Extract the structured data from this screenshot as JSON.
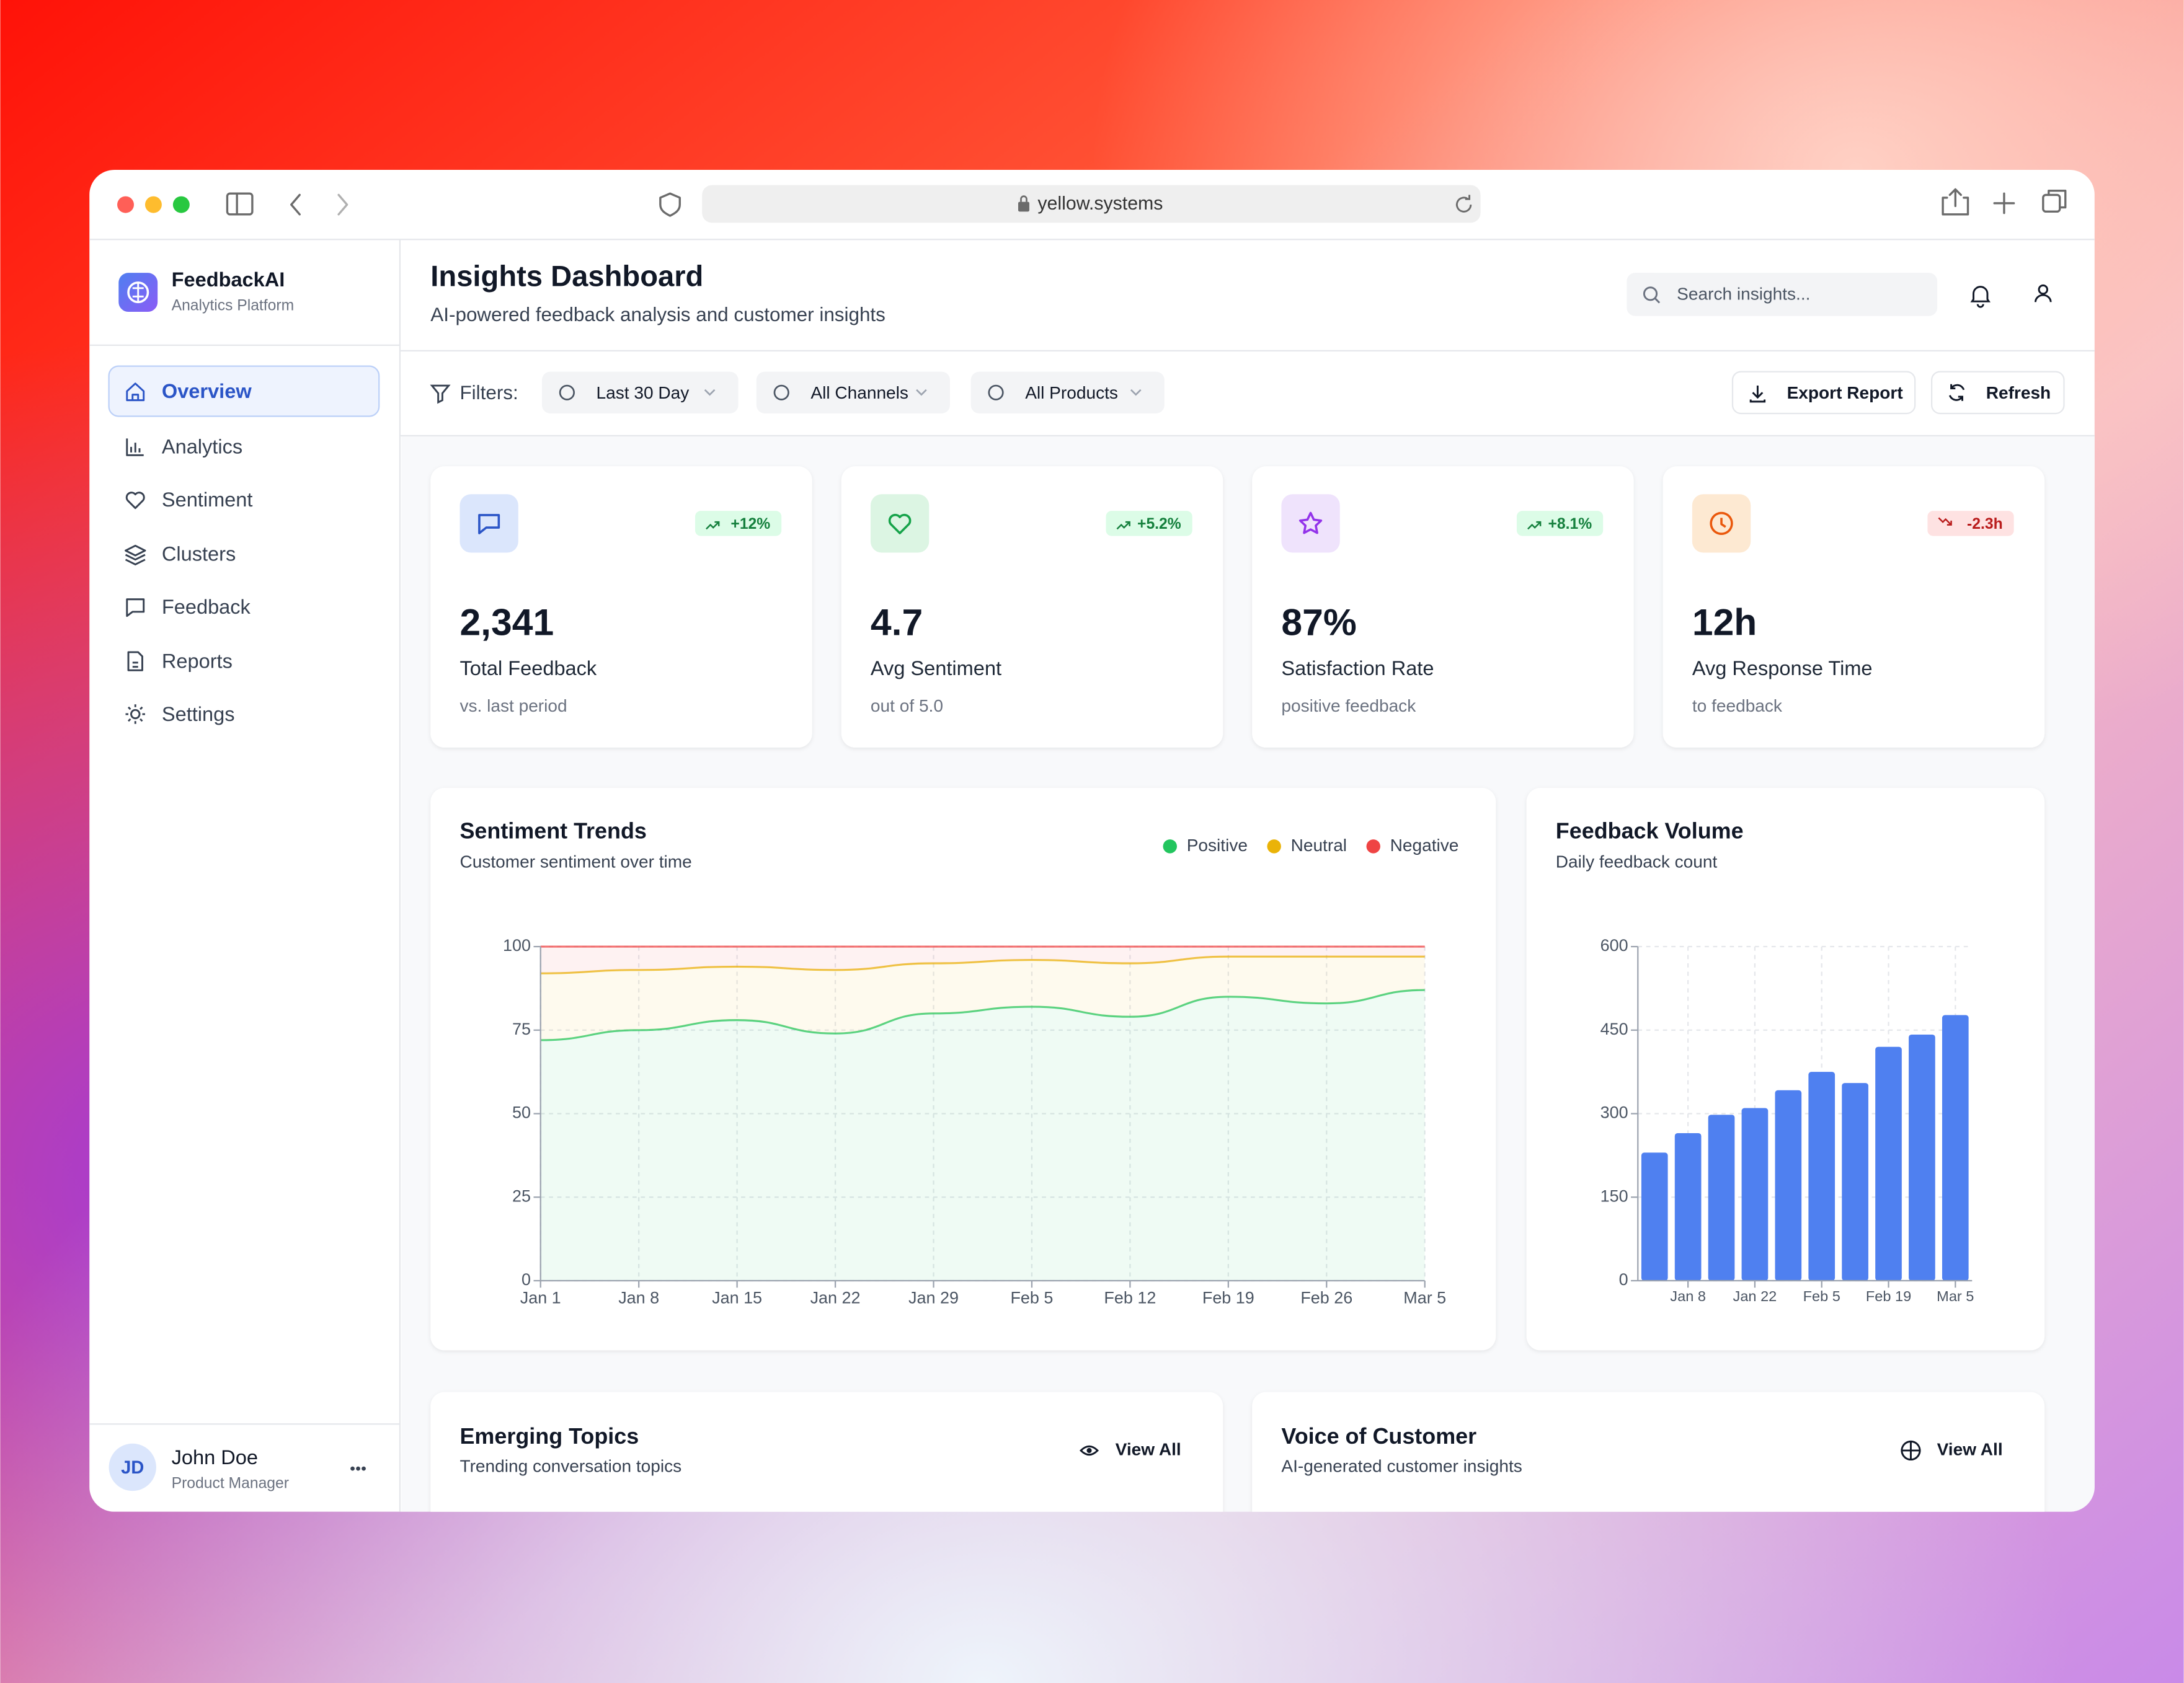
{
  "browser": {
    "url": "yellow.systems"
  },
  "sidebar": {
    "brand": "FeedbackAI",
    "tagline": "Analytics Platform",
    "nav": [
      "Overview",
      "Analytics",
      "Sentiment",
      "Clusters",
      "Feedback",
      "Reports",
      "Settings"
    ],
    "user": {
      "initials": "JD",
      "name": "John Doe",
      "role": "Product Manager"
    }
  },
  "header": {
    "title": "Insights Dashboard",
    "subtitle": "AI-powered feedback analysis and customer insights",
    "search_placeholder": "Search insights..."
  },
  "filters": {
    "label": "Filters:",
    "options": [
      "Last 30 Day",
      "All Channels",
      "All Products"
    ],
    "actions": [
      "Export Report",
      "Refresh"
    ]
  },
  "stats": [
    {
      "value": "2,341",
      "label": "Total Feedback",
      "note": "vs. last period",
      "change": "+12%"
    },
    {
      "value": "4.7",
      "label": "Avg Sentiment",
      "note": "out of 5.0",
      "change": "+5.2%"
    },
    {
      "value": "87%",
      "label": "Satisfaction Rate",
      "note": "positive feedback",
      "change": "+8.1%"
    },
    {
      "value": "12h",
      "label": "Avg Response Time",
      "note": "to feedback",
      "change": "-2.3h"
    }
  ],
  "sentiment_trends": {
    "type": "stacked_area",
    "title": "Sentiment Trends",
    "subtitle": "Customer sentiment over time",
    "categories": [
      "Jan 1",
      "Jan 8",
      "Jan 15",
      "Jan 22",
      "Jan 29",
      "Feb 5",
      "Feb 12",
      "Feb 19",
      "Feb 26",
      "Mar 5"
    ],
    "series": [
      {
        "name": "Positive",
        "color": "#22c55e",
        "values": [
          72,
          75,
          78,
          74,
          80,
          82,
          79,
          85,
          83,
          87
        ]
      },
      {
        "name": "Neutral",
        "color": "#eab308",
        "values": [
          20,
          18,
          16,
          19,
          15,
          14,
          16,
          12,
          14,
          10
        ]
      },
      {
        "name": "Negative",
        "color": "#ef4444",
        "values": [
          8,
          7,
          6,
          7,
          5,
          4,
          5,
          3,
          3,
          3
        ]
      }
    ],
    "ylim": [
      0,
      100
    ],
    "yticks": [
      0,
      25,
      50,
      75,
      100
    ],
    "grid": true
  },
  "feedback_volume": {
    "type": "bar",
    "title": "Feedback Volume",
    "subtitle": "Daily feedback count",
    "categories": [
      null,
      "Jan 8",
      null,
      "Jan 22",
      null,
      "Feb 5",
      null,
      "Feb 19",
      null,
      "Mar 5"
    ],
    "values": [
      230,
      265,
      298,
      310,
      342,
      375,
      355,
      420,
      442,
      477
    ],
    "color": "#4f80f0",
    "ylim": [
      0,
      600
    ],
    "yticks": [
      0,
      150,
      300,
      450,
      600
    ],
    "grid": true
  },
  "panels": [
    {
      "title": "Emerging Topics",
      "subtitle": "Trending conversation topics",
      "action": "View All"
    },
    {
      "title": "Voice of Customer",
      "subtitle": "AI-generated customer insights",
      "action": "View All"
    }
  ]
}
